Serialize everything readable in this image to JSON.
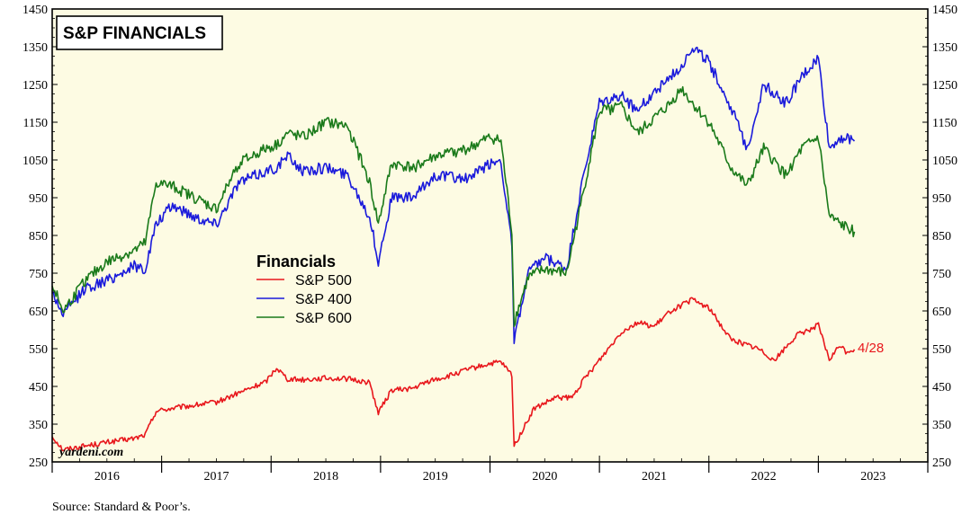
{
  "chart_data": {
    "type": "line",
    "title": "S&P FINANCIALS",
    "legend_title": "Financials",
    "watermark": "yardeni.com",
    "source": "Source: Standard & Poor’s.",
    "end_label": "4/28",
    "ylim": [
      250,
      1450
    ],
    "y_ticks": [
      250,
      350,
      450,
      550,
      650,
      750,
      850,
      950,
      1050,
      1150,
      1250,
      1350,
      1450
    ],
    "y_tick_labels": [
      "250",
      "350",
      "450",
      "550",
      "650",
      "750",
      "850",
      "950",
      "1050",
      "1150",
      "1250",
      "1350",
      "1450"
    ],
    "xlim": [
      2016.0,
      2024.0
    ],
    "x_categories": [
      "2016",
      "2017",
      "2018",
      "2019",
      "2020",
      "2021",
      "2022",
      "2023"
    ],
    "grid": false,
    "background_color": "#fdfbe3",
    "legend_placement": "center-left",
    "series": [
      {
        "name": "S&P 500",
        "color": "#e8171c",
        "x": [
          2016.0,
          2016.1,
          2016.25,
          2016.5,
          2016.75,
          2016.85,
          2016.95,
          2017.1,
          2017.3,
          2017.5,
          2017.75,
          2017.95,
          2018.05,
          2018.15,
          2018.3,
          2018.5,
          2018.7,
          2018.9,
          2018.98,
          2019.1,
          2019.3,
          2019.45,
          2019.6,
          2019.8,
          2020.0,
          2020.1,
          2020.2,
          2020.22,
          2020.4,
          2020.6,
          2020.75,
          2020.85,
          2021.0,
          2021.2,
          2021.35,
          2021.5,
          2021.65,
          2021.75,
          2021.85,
          2022.0,
          2022.2,
          2022.45,
          2022.6,
          2022.8,
          2023.0,
          2023.1,
          2023.2,
          2023.25,
          2023.33
        ],
        "values": [
          318,
          282,
          290,
          302,
          312,
          322,
          385,
          392,
          400,
          408,
          438,
          462,
          500,
          470,
          468,
          472,
          470,
          460,
          380,
          440,
          445,
          465,
          475,
          495,
          510,
          514,
          480,
          292,
          390,
          420,
          420,
          465,
          520,
          595,
          620,
          608,
          650,
          665,
          680,
          658,
          575,
          550,
          520,
          585,
          612,
          520,
          560,
          542,
          548
        ]
      },
      {
        "name": "S&P 400",
        "color": "#1a1adb",
        "x": [
          2016.0,
          2016.1,
          2016.3,
          2016.5,
          2016.75,
          2016.85,
          2016.95,
          2017.1,
          2017.3,
          2017.5,
          2017.7,
          2017.95,
          2018.05,
          2018.15,
          2018.3,
          2018.5,
          2018.7,
          2018.9,
          2018.98,
          2019.1,
          2019.3,
          2019.5,
          2019.8,
          2020.0,
          2020.1,
          2020.2,
          2020.22,
          2020.35,
          2020.5,
          2020.7,
          2020.85,
          2021.0,
          2021.2,
          2021.35,
          2021.5,
          2021.65,
          2021.75,
          2021.85,
          2022.0,
          2022.2,
          2022.35,
          2022.5,
          2022.7,
          2022.85,
          2023.0,
          2023.1,
          2023.2,
          2023.33
        ],
        "values": [
          700,
          640,
          710,
          730,
          770,
          760,
          880,
          930,
          900,
          880,
          990,
          1020,
          1030,
          1060,
          1020,
          1030,
          1010,
          900,
          780,
          950,
          950,
          1010,
          1000,
          1040,
          1050,
          820,
          570,
          750,
          790,
          760,
          1000,
          1200,
          1220,
          1180,
          1230,
          1270,
          1300,
          1350,
          1310,
          1190,
          1080,
          1250,
          1200,
          1270,
          1320,
          1080,
          1110,
          1100
        ]
      },
      {
        "name": "S&P 600",
        "color": "#1a7a1a",
        "x": [
          2016.0,
          2016.1,
          2016.3,
          2016.5,
          2016.75,
          2016.85,
          2016.95,
          2017.1,
          2017.3,
          2017.5,
          2017.7,
          2017.95,
          2018.05,
          2018.15,
          2018.3,
          2018.5,
          2018.7,
          2018.9,
          2018.98,
          2019.1,
          2019.3,
          2019.5,
          2019.8,
          2020.0,
          2020.1,
          2020.2,
          2020.22,
          2020.35,
          2020.5,
          2020.7,
          2020.85,
          2021.0,
          2021.2,
          2021.35,
          2021.5,
          2021.65,
          2021.75,
          2021.85,
          2022.0,
          2022.2,
          2022.35,
          2022.5,
          2022.7,
          2022.85,
          2023.0,
          2023.1,
          2023.2,
          2023.33
        ],
        "values": [
          720,
          650,
          730,
          780,
          810,
          830,
          990,
          980,
          950,
          920,
          1040,
          1080,
          1090,
          1120,
          1110,
          1150,
          1140,
          990,
          880,
          1040,
          1030,
          1060,
          1080,
          1110,
          1100,
          860,
          620,
          740,
          760,
          750,
          960,
          1180,
          1190,
          1120,
          1160,
          1200,
          1240,
          1200,
          1150,
          1030,
          980,
          1080,
          1010,
          1080,
          1110,
          900,
          880,
          860
        ]
      }
    ]
  }
}
